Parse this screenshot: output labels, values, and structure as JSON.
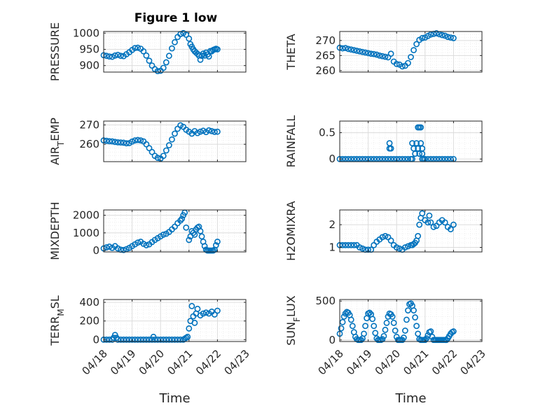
{
  "title": "Figure 1 low",
  "colors": {
    "marker": "#0072bd",
    "axis": "#262626",
    "grid": "#dcdcdc"
  },
  "chart_data": [
    {
      "type": "scatter",
      "ylabel": "PRESSURE",
      "ylim": [
        880,
        1005
      ],
      "yticks": [
        900,
        950,
        1000
      ],
      "xlim": [
        0,
        5
      ],
      "xticks": [
        "",
        "",
        "",
        "",
        "",
        ""
      ],
      "x": [
        0.0,
        0.1,
        0.2,
        0.3,
        0.4,
        0.5,
        0.6,
        0.7,
        0.8,
        0.9,
        1.0,
        1.1,
        1.2,
        1.3,
        1.4,
        1.5,
        1.6,
        1.7,
        1.8,
        1.9,
        2.0,
        2.1,
        2.2,
        2.3,
        2.4,
        2.5,
        2.6,
        2.7,
        2.8,
        2.9,
        3.0,
        3.05,
        3.1,
        3.15,
        3.2,
        3.25,
        3.3,
        3.35,
        3.4,
        3.45,
        3.5,
        3.55,
        3.6,
        3.65,
        3.7,
        3.75,
        3.8,
        3.85,
        3.9,
        3.95,
        4.0
      ],
      "y": [
        932,
        930,
        928,
        927,
        931,
        933,
        930,
        929,
        935,
        941,
        948,
        954,
        955,
        952,
        944,
        931,
        915,
        900,
        889,
        883,
        884,
        893,
        910,
        930,
        953,
        972,
        988,
        997,
        1000,
        995,
        983,
        966,
        958,
        950,
        944,
        940,
        936,
        931,
        918,
        930,
        937,
        931,
        940,
        934,
        928,
        945,
        944,
        948,
        950,
        952,
        950
      ]
    },
    {
      "type": "scatter",
      "ylabel": "THETA",
      "ylim": [
        259.5,
        273
      ],
      "yticks": [
        260,
        265,
        270
      ],
      "xlim": [
        0,
        5
      ],
      "xticks": [
        "",
        "",
        "",
        "",
        "",
        ""
      ],
      "x": [
        0.0,
        0.1,
        0.2,
        0.3,
        0.4,
        0.5,
        0.6,
        0.7,
        0.8,
        0.9,
        1.0,
        1.1,
        1.2,
        1.3,
        1.4,
        1.5,
        1.6,
        1.7,
        1.8,
        1.9,
        2.0,
        2.1,
        2.2,
        2.3,
        2.4,
        2.5,
        2.6,
        2.7,
        2.8,
        2.9,
        3.0,
        3.1,
        3.2,
        3.3,
        3.4,
        3.5,
        3.6,
        3.7,
        3.8,
        3.9,
        4.0
      ],
      "y": [
        267.6,
        267.4,
        267.5,
        267.2,
        267.0,
        266.8,
        266.6,
        266.4,
        266.2,
        266.0,
        265.8,
        265.6,
        265.5,
        265.3,
        265.0,
        264.8,
        264.6,
        264.4,
        265.6,
        263.0,
        262.2,
        262.0,
        261.4,
        261.6,
        262.5,
        264.5,
        266.8,
        268.8,
        270.2,
        270.8,
        271.0,
        271.5,
        272.0,
        272.2,
        272.4,
        272.1,
        271.8,
        271.6,
        271.2,
        271.0,
        270.8
      ]
    },
    {
      "type": "scatter",
      "ylabel": "AIR_TEMP",
      "ylim": [
        251,
        272
      ],
      "yticks": [
        260,
        270
      ],
      "xlim": [
        0,
        5
      ],
      "xticks": [
        "",
        "",
        "",
        "",
        "",
        ""
      ],
      "x": [
        0.0,
        0.1,
        0.2,
        0.3,
        0.4,
        0.5,
        0.6,
        0.7,
        0.8,
        0.9,
        1.0,
        1.1,
        1.2,
        1.3,
        1.4,
        1.5,
        1.6,
        1.7,
        1.8,
        1.9,
        2.0,
        2.1,
        2.2,
        2.3,
        2.4,
        2.5,
        2.6,
        2.7,
        2.8,
        2.9,
        3.0,
        3.1,
        3.2,
        3.3,
        3.4,
        3.5,
        3.6,
        3.7,
        3.8,
        3.9,
        4.0
      ],
      "y": [
        262.0,
        261.8,
        261.6,
        261.5,
        261.2,
        261.0,
        260.9,
        260.8,
        260.5,
        260.6,
        261.4,
        262.0,
        262.2,
        262.0,
        261.5,
        260.0,
        258.0,
        256.0,
        254.0,
        253.0,
        252.6,
        254.0,
        256.8,
        259.5,
        262.5,
        265.5,
        268.0,
        269.8,
        269.0,
        267.5,
        266.5,
        265.5,
        266.8,
        265.8,
        266.5,
        267.0,
        266.3,
        267.2,
        266.8,
        266.4,
        266.5
      ]
    },
    {
      "type": "scatter",
      "ylabel": "RAINFALL",
      "ylim": [
        -0.05,
        0.72
      ],
      "yticks": [
        0,
        0.5
      ],
      "xlim": [
        0,
        5
      ],
      "xticks": [
        "",
        "",
        "",
        "",
        "",
        ""
      ],
      "x": [
        0.0,
        0.1,
        0.2,
        0.3,
        0.4,
        0.5,
        0.6,
        0.7,
        0.8,
        0.9,
        1.0,
        1.1,
        1.2,
        1.3,
        1.4,
        1.5,
        1.6,
        1.7,
        1.75,
        1.75,
        1.8,
        1.8,
        1.9,
        2.0,
        2.1,
        2.2,
        2.3,
        2.4,
        2.5,
        2.55,
        2.55,
        2.6,
        2.65,
        2.7,
        2.75,
        2.75,
        2.8,
        2.8,
        2.85,
        2.85,
        2.9,
        2.9,
        2.9,
        2.95,
        3.0,
        3.1,
        3.2,
        3.3,
        3.4,
        3.5,
        3.6,
        3.7,
        3.8,
        3.9,
        4.0
      ],
      "y": [
        0,
        0,
        0,
        0,
        0,
        0,
        0,
        0,
        0,
        0,
        0,
        0,
        0,
        0,
        0,
        0,
        0,
        0,
        0.2,
        0.3,
        0.2,
        0.0,
        0,
        0,
        0,
        0,
        0,
        0,
        0,
        0.3,
        0.0,
        0.2,
        0.1,
        0.3,
        0.6,
        0.2,
        0.6,
        0.1,
        0.3,
        0.6,
        0.2,
        0.0,
        0.1,
        0.0,
        0,
        0,
        0,
        0,
        0,
        0,
        0,
        0,
        0,
        0,
        0
      ]
    },
    {
      "type": "scatter",
      "ylabel": "MIXDEPTH",
      "ylim": [
        -80,
        2300
      ],
      "yticks": [
        0,
        1000,
        2000
      ],
      "xlim": [
        0,
        5
      ],
      "xticks": [
        "",
        "",
        "",
        "",
        "",
        ""
      ],
      "x": [
        0.0,
        0.1,
        0.2,
        0.3,
        0.4,
        0.5,
        0.6,
        0.7,
        0.8,
        0.9,
        1.0,
        1.1,
        1.2,
        1.3,
        1.4,
        1.5,
        1.6,
        1.7,
        1.8,
        1.9,
        2.0,
        2.1,
        2.2,
        2.3,
        2.4,
        2.5,
        2.6,
        2.7,
        2.75,
        2.8,
        2.85,
        2.9,
        3.0,
        3.05,
        3.1,
        3.15,
        3.2,
        3.25,
        3.3,
        3.35,
        3.4,
        3.45,
        3.5,
        3.55,
        3.6,
        3.65,
        3.7,
        3.75,
        3.8,
        3.85,
        3.9,
        3.95,
        4.0
      ],
      "y": [
        120,
        180,
        220,
        150,
        250,
        120,
        50,
        30,
        80,
        150,
        250,
        350,
        450,
        500,
        380,
        300,
        350,
        480,
        600,
        700,
        800,
        900,
        950,
        1050,
        1200,
        1350,
        1550,
        1700,
        1800,
        2000,
        2150,
        1300,
        600,
        800,
        1100,
        1000,
        900,
        1200,
        1300,
        1350,
        1100,
        800,
        500,
        250,
        50,
        0,
        0,
        0,
        0,
        0,
        50,
        300,
        500
      ]
    },
    {
      "type": "scatter",
      "ylabel": "H2OMIXRA",
      "ylim": [
        0.8,
        2.65
      ],
      "yticks": [
        1,
        2
      ],
      "xlim": [
        0,
        5
      ],
      "xticks": [
        "",
        "",
        "",
        "",
        "",
        ""
      ],
      "x": [
        0.0,
        0.1,
        0.2,
        0.3,
        0.4,
        0.5,
        0.6,
        0.7,
        0.8,
        0.9,
        1.0,
        1.1,
        1.2,
        1.3,
        1.4,
        1.5,
        1.6,
        1.7,
        1.8,
        1.9,
        2.0,
        2.1,
        2.2,
        2.3,
        2.4,
        2.5,
        2.55,
        2.6,
        2.65,
        2.7,
        2.75,
        2.8,
        2.85,
        2.9,
        3.0,
        3.1,
        3.15,
        3.2,
        3.3,
        3.4,
        3.5,
        3.6,
        3.7,
        3.8,
        3.9,
        4.0
      ],
      "y": [
        1.1,
        1.1,
        1.1,
        1.1,
        1.1,
        1.1,
        1.1,
        1.0,
        0.95,
        0.9,
        0.9,
        0.9,
        1.1,
        1.25,
        1.35,
        1.45,
        1.5,
        1.45,
        1.3,
        1.1,
        1.0,
        0.95,
        0.9,
        1.0,
        1.05,
        1.1,
        1.1,
        1.15,
        1.2,
        1.3,
        1.5,
        2.0,
        2.3,
        2.5,
        2.2,
        2.1,
        2.4,
        2.1,
        1.9,
        1.95,
        2.1,
        2.2,
        2.1,
        1.9,
        1.8,
        2.0
      ]
    },
    {
      "type": "scatter",
      "ylabel": "TERR_MSL",
      "ylim": [
        -20,
        430
      ],
      "yticks": [
        0,
        200,
        400
      ],
      "xlim": [
        0,
        5
      ],
      "xticks": [
        "04/18",
        "04/19",
        "04/20",
        "04/21",
        "04/22",
        "04/23"
      ],
      "xlabel": "Time",
      "x": [
        0.0,
        0.1,
        0.2,
        0.3,
        0.35,
        0.4,
        0.45,
        0.5,
        0.6,
        0.7,
        0.8,
        0.9,
        1.0,
        1.1,
        1.2,
        1.3,
        1.4,
        1.5,
        1.6,
        1.7,
        1.75,
        1.8,
        1.9,
        2.0,
        2.1,
        2.2,
        2.3,
        2.4,
        2.5,
        2.6,
        2.7,
        2.8,
        2.85,
        2.9,
        2.95,
        3.0,
        3.05,
        3.1,
        3.15,
        3.2,
        3.25,
        3.3,
        3.4,
        3.5,
        3.6,
        3.7,
        3.8,
        3.9,
        4.0
      ],
      "y": [
        0,
        0,
        0,
        0,
        20,
        50,
        20,
        0,
        0,
        0,
        0,
        0,
        0,
        0,
        0,
        0,
        0,
        0,
        0,
        0,
        30,
        0,
        0,
        0,
        0,
        0,
        0,
        0,
        0,
        0,
        0,
        0,
        10,
        20,
        30,
        120,
        200,
        360,
        250,
        180,
        280,
        330,
        260,
        280,
        290,
        280,
        300,
        270,
        310
      ]
    },
    {
      "type": "scatter",
      "ylabel": "SUN_FLUX",
      "ylim": [
        -20,
        520
      ],
      "yticks": [
        0,
        500
      ],
      "xlim": [
        0,
        5
      ],
      "xticks": [
        "04/18",
        "04/19",
        "04/20",
        "04/21",
        "04/22",
        "04/23"
      ],
      "xlabel": "Time",
      "x": [
        0.0,
        0.05,
        0.1,
        0.15,
        0.2,
        0.25,
        0.3,
        0.35,
        0.4,
        0.45,
        0.5,
        0.55,
        0.6,
        0.65,
        0.7,
        0.75,
        0.8,
        0.85,
        0.9,
        0.95,
        1.0,
        1.05,
        1.1,
        1.15,
        1.2,
        1.25,
        1.3,
        1.35,
        1.4,
        1.45,
        1.5,
        1.55,
        1.6,
        1.65,
        1.7,
        1.75,
        1.8,
        1.85,
        1.9,
        1.95,
        2.0,
        2.05,
        2.1,
        2.15,
        2.2,
        2.25,
        2.3,
        2.35,
        2.4,
        2.45,
        2.5,
        2.55,
        2.6,
        2.65,
        2.7,
        2.75,
        2.8,
        2.85,
        2.9,
        2.95,
        3.0,
        3.05,
        3.1,
        3.15,
        3.2,
        3.25,
        3.3,
        3.35,
        3.4,
        3.45,
        3.5,
        3.55,
        3.6,
        3.65,
        3.7,
        3.75,
        3.8,
        3.85,
        3.9,
        3.95,
        4.0
      ],
      "y": [
        80,
        150,
        230,
        300,
        340,
        360,
        350,
        320,
        260,
        180,
        100,
        40,
        10,
        0,
        0,
        0,
        20,
        80,
        180,
        280,
        340,
        350,
        330,
        270,
        180,
        90,
        20,
        0,
        0,
        0,
        10,
        50,
        130,
        220,
        300,
        340,
        330,
        300,
        220,
        120,
        40,
        0,
        0,
        0,
        0,
        30,
        120,
        260,
        380,
        460,
        470,
        440,
        380,
        290,
        180,
        80,
        10,
        0,
        0,
        0,
        0,
        20,
        60,
        100,
        110,
        40,
        0,
        0,
        0,
        0,
        0,
        0,
        0,
        0,
        0,
        0,
        20,
        50,
        80,
        100,
        110
      ]
    }
  ]
}
